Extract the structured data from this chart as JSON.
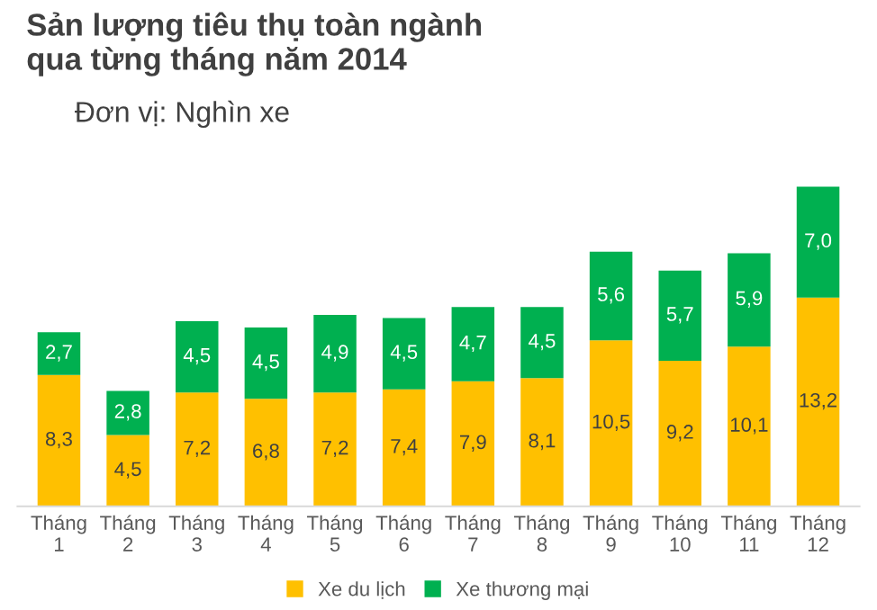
{
  "chart_data": {
    "type": "bar",
    "stacked": true,
    "title": "Sản lượng tiêu thụ toàn ngành\nqua từng tháng năm 2014",
    "subtitle": "Đơn vị: Nghìn xe",
    "categories": [
      "Tháng\n1",
      "Tháng\n2",
      "Tháng\n3",
      "Tháng\n4",
      "Tháng\n5",
      "Tháng\n6",
      "Tháng\n7",
      "Tháng\n8",
      "Tháng\n9",
      "Tháng\n10",
      "Tháng\n11",
      "Tháng\n12"
    ],
    "series": [
      {
        "name": "Xe du lịch",
        "color": "#ffc000",
        "values": [
          8.3,
          4.5,
          7.2,
          6.8,
          7.2,
          7.4,
          7.9,
          8.1,
          10.5,
          9.2,
          10.1,
          13.2
        ],
        "value_labels": [
          "8,3",
          "4,5",
          "7,2",
          "6,8",
          "7,2",
          "7,4",
          "7,9",
          "8,1",
          "10,5",
          "9,2",
          "10,1",
          "13,2"
        ]
      },
      {
        "name": "Xe thương mại",
        "color": "#00b050",
        "values": [
          2.7,
          2.8,
          4.5,
          4.5,
          4.9,
          4.5,
          4.7,
          4.5,
          5.6,
          5.7,
          5.9,
          7.0
        ],
        "value_labels": [
          "2,7",
          "2,8",
          "4,5",
          "4,5",
          "4,9",
          "4,5",
          "4,7",
          "4,5",
          "5,6",
          "5,7",
          "5,9",
          "7,0"
        ]
      }
    ],
    "legend": "bottom",
    "tick_labels": "x"
  }
}
